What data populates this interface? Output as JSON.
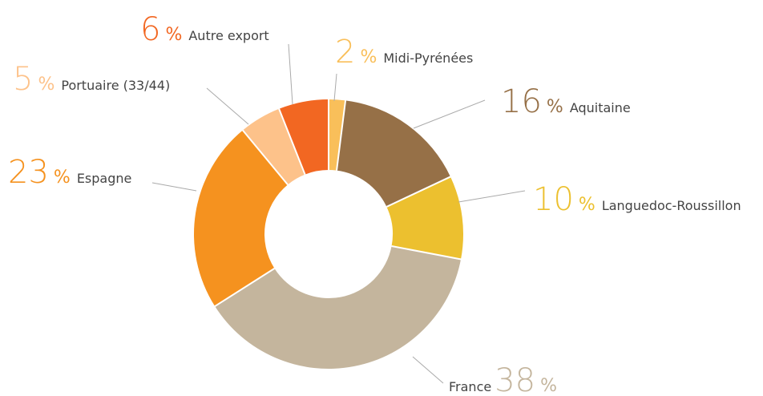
{
  "chart_data": {
    "type": "donut",
    "categories": [
      "Midi-Pyrénées",
      "Aquitaine",
      "Languedoc-Roussillon",
      "France",
      "Espagne",
      "Portuaire (33/44)",
      "Autre export"
    ],
    "values": [
      2,
      16,
      10,
      38,
      23,
      5,
      6
    ],
    "value_labels": [
      "2 %",
      "16 %",
      "10 %",
      "38 %",
      "23 %",
      "5 %",
      "6 %"
    ],
    "colors": [
      "#f9bf5a",
      "#967047",
      "#ecc02f",
      "#c4b59d",
      "#f5921f",
      "#fdc28a",
      "#f26722"
    ]
  }
}
